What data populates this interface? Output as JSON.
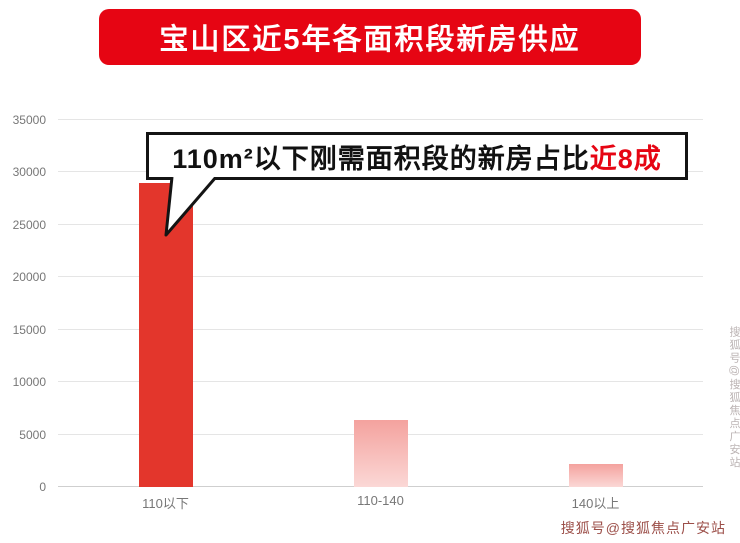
{
  "chart_data": {
    "type": "bar",
    "title": "宝山区近5年各面积段新房供应",
    "categories": [
      "110以下",
      "110-140",
      "140以上"
    ],
    "values": [
      29000,
      6400,
      2200
    ],
    "ylim": [
      0,
      35000
    ],
    "yticks": [
      0,
      5000,
      10000,
      15000,
      20000,
      25000,
      30000,
      35000
    ],
    "grid": true,
    "legend_position": "none",
    "xlabel": "",
    "ylabel": ""
  },
  "annotation": {
    "text_main": "110m²以下刚需面积段的新房占比",
    "text_highlight": "近8成"
  },
  "watermarks": {
    "bottom": "搜狐号@搜狐焦点广安站",
    "side": "搜狐号@搜狐焦点广安站"
  },
  "colors": {
    "banner_red": "#e60513",
    "bar_red": "#e3362c",
    "bar_pink_top": "#f4a29e",
    "bar_pink_bottom": "#fbd8d6",
    "highlight_red": "#e60513",
    "gridline": "#e5e5e5",
    "axis_text": "#777777"
  }
}
